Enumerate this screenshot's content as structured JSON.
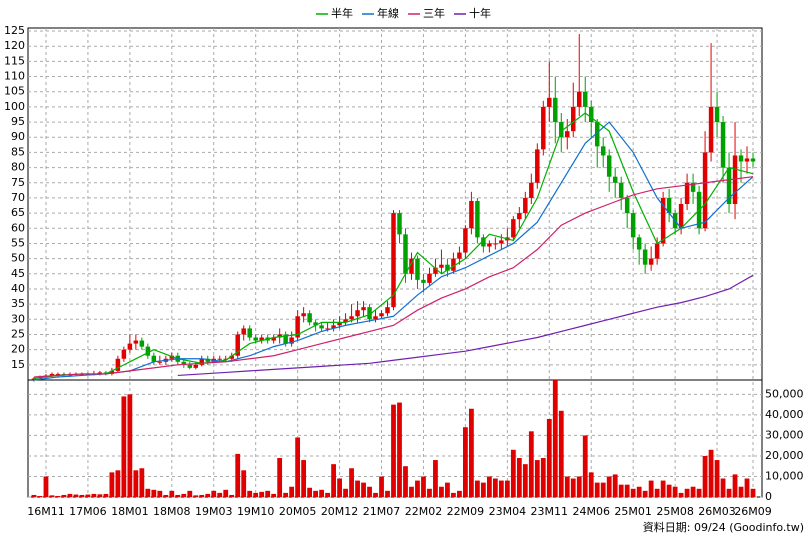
{
  "chart_data": {
    "type": "candlestick",
    "legend": "top",
    "grid": true,
    "up_color": "#e00000",
    "down_color": "#00a000",
    "volume_color": "#e00000",
    "footer": "資料日期: 09/24 (Goodinfo.tw)",
    "xlim": [
      -1,
      121.5
    ],
    "xticks": [
      {
        "value": 2,
        "label": "16M11"
      },
      {
        "value": 9,
        "label": "17M06"
      },
      {
        "value": 16,
        "label": "18M01"
      },
      {
        "value": 23,
        "label": "18M08"
      },
      {
        "value": 30,
        "label": "19M03"
      },
      {
        "value": 37,
        "label": "19M10"
      },
      {
        "value": 44,
        "label": "20M05"
      },
      {
        "value": 51,
        "label": "20M12"
      },
      {
        "value": 58,
        "label": "21M07"
      },
      {
        "value": 65,
        "label": "22M02"
      },
      {
        "value": 72,
        "label": "22M09"
      },
      {
        "value": 79,
        "label": "23M04"
      },
      {
        "value": 86,
        "label": "23M11"
      },
      {
        "value": 93,
        "label": "24M06"
      },
      {
        "value": 100,
        "label": "25M01"
      },
      {
        "value": 107,
        "label": "25M08"
      },
      {
        "value": 114,
        "label": "26M03"
      },
      {
        "value": 120,
        "label": "26M09"
      }
    ],
    "ylim": [
      10,
      126
    ],
    "yticks": [
      15,
      20,
      25,
      30,
      35,
      40,
      45,
      50,
      55,
      60,
      65,
      70,
      75,
      80,
      85,
      90,
      95,
      100,
      105,
      110,
      115,
      120,
      125
    ],
    "y2lim": [
      0,
      57000
    ],
    "y2ticks": [
      {
        "value": 0,
        "label": "0"
      },
      {
        "value": 10000,
        "label": "10,000"
      },
      {
        "value": 20000,
        "label": "20,000"
      },
      {
        "value": 30000,
        "label": "30,000"
      },
      {
        "value": 40000,
        "label": "40,000"
      },
      {
        "value": 50000,
        "label": "50,000"
      }
    ],
    "candles": [
      [
        10,
        11,
        9.5,
        10.5
      ],
      [
        10.5,
        11.5,
        10,
        11
      ],
      [
        11,
        12,
        10.5,
        11.5
      ],
      [
        11.5,
        12.5,
        11,
        12
      ],
      [
        12,
        12.5,
        11,
        12
      ],
      [
        12,
        12.5,
        11,
        11.5
      ],
      [
        11.5,
        12.5,
        11,
        12
      ],
      [
        12,
        12.5,
        11.5,
        12
      ],
      [
        12,
        12.5,
        11.5,
        12
      ],
      [
        12,
        12.5,
        11.5,
        12
      ],
      [
        12,
        13,
        11.5,
        12
      ],
      [
        12,
        13,
        11.5,
        12.5
      ],
      [
        12.5,
        13,
        11.5,
        12
      ],
      [
        12,
        14,
        11.5,
        13
      ],
      [
        13,
        18,
        12.5,
        17
      ],
      [
        17,
        21,
        16,
        20
      ],
      [
        20,
        25,
        19,
        22
      ],
      [
        22,
        25,
        20,
        23
      ],
      [
        23,
        24,
        20,
        21
      ],
      [
        21,
        22,
        17,
        18
      ],
      [
        18,
        19,
        15,
        16
      ],
      [
        16,
        18,
        15,
        16
      ],
      [
        16,
        18,
        15,
        17
      ],
      [
        17,
        19,
        16,
        18
      ],
      [
        18,
        19,
        15,
        16
      ],
      [
        16,
        17,
        14,
        15
      ],
      [
        15,
        16,
        13.5,
        14
      ],
      [
        14,
        16,
        13.5,
        15
      ],
      [
        15,
        18,
        14.5,
        17
      ],
      [
        17,
        18,
        15,
        16
      ],
      [
        16,
        18,
        15.5,
        17
      ],
      [
        17,
        18,
        16,
        17
      ],
      [
        17,
        18,
        16,
        17
      ],
      [
        17,
        19,
        16,
        18
      ],
      [
        18,
        26,
        17,
        25
      ],
      [
        25,
        28,
        23,
        27
      ],
      [
        27,
        28,
        23,
        24
      ],
      [
        24,
        25,
        22,
        23
      ],
      [
        23,
        25,
        22,
        24
      ],
      [
        24,
        25,
        22,
        23
      ],
      [
        23,
        25,
        22,
        24
      ],
      [
        24,
        27,
        22,
        25
      ],
      [
        25,
        26,
        21,
        22
      ],
      [
        22,
        26,
        21,
        24
      ],
      [
        24,
        33,
        23,
        31
      ],
      [
        31,
        34,
        29,
        32
      ],
      [
        32,
        33,
        28,
        29
      ],
      [
        29,
        30,
        26,
        28
      ],
      [
        28,
        29,
        26,
        27
      ],
      [
        27,
        29,
        26,
        27
      ],
      [
        27,
        30,
        26,
        28
      ],
      [
        28,
        31,
        27,
        29
      ],
      [
        29,
        32,
        28,
        30
      ],
      [
        30,
        35,
        29,
        31
      ],
      [
        31,
        36,
        29,
        33
      ],
      [
        33,
        36,
        31,
        34
      ],
      [
        34,
        35,
        29,
        30
      ],
      [
        30,
        33,
        29,
        31
      ],
      [
        31,
        33,
        30,
        32
      ],
      [
        32,
        36,
        31,
        34
      ],
      [
        34,
        66,
        33,
        65
      ],
      [
        65,
        66,
        55,
        58
      ],
      [
        58,
        60,
        42,
        45
      ],
      [
        45,
        52,
        43,
        50
      ],
      [
        50,
        51,
        40,
        43
      ],
      [
        43,
        45,
        39,
        42
      ],
      [
        42,
        47,
        41,
        45
      ],
      [
        45,
        50,
        44,
        47
      ],
      [
        47,
        53,
        45,
        48
      ],
      [
        48,
        50,
        44,
        46
      ],
      [
        46,
        52,
        45,
        50
      ],
      [
        50,
        54,
        48,
        52
      ],
      [
        52,
        61,
        50,
        60
      ],
      [
        60,
        72,
        58,
        69
      ],
      [
        69,
        70,
        55,
        57
      ],
      [
        57,
        58,
        52,
        54
      ],
      [
        54,
        56,
        52,
        55
      ],
      [
        55,
        57,
        53,
        55
      ],
      [
        55,
        58,
        53,
        56
      ],
      [
        56,
        60,
        54,
        57
      ],
      [
        57,
        64,
        56,
        63
      ],
      [
        63,
        67,
        60,
        65
      ],
      [
        65,
        72,
        63,
        70
      ],
      [
        70,
        78,
        68,
        75
      ],
      [
        75,
        88,
        73,
        86
      ],
      [
        86,
        102,
        84,
        100
      ],
      [
        100,
        115,
        95,
        103
      ],
      [
        103,
        110,
        88,
        95
      ],
      [
        95,
        98,
        85,
        90
      ],
      [
        90,
        96,
        86,
        92
      ],
      [
        92,
        108,
        90,
        100
      ],
      [
        100,
        124,
        97,
        105
      ],
      [
        105,
        110,
        95,
        100
      ],
      [
        100,
        102,
        90,
        95
      ],
      [
        95,
        96,
        80,
        87
      ],
      [
        87,
        90,
        80,
        84
      ],
      [
        84,
        86,
        72,
        77
      ],
      [
        77,
        80,
        70,
        75
      ],
      [
        75,
        77,
        66,
        70
      ],
      [
        70,
        71,
        60,
        65
      ],
      [
        65,
        66,
        53,
        57
      ],
      [
        57,
        58,
        48,
        53
      ],
      [
        53,
        55,
        45,
        48
      ],
      [
        48,
        54,
        46,
        50
      ],
      [
        50,
        57,
        48,
        55
      ],
      [
        55,
        72,
        54,
        70
      ],
      [
        70,
        73,
        62,
        65
      ],
      [
        65,
        66,
        58,
        60
      ],
      [
        60,
        70,
        58,
        68
      ],
      [
        68,
        78,
        66,
        75
      ],
      [
        75,
        78,
        68,
        72
      ],
      [
        72,
        74,
        58,
        60
      ],
      [
        60,
        92,
        59,
        85
      ],
      [
        85,
        121,
        82,
        100
      ],
      [
        100,
        105,
        90,
        95
      ],
      [
        95,
        97,
        75,
        80
      ],
      [
        80,
        85,
        65,
        68
      ],
      [
        68,
        95,
        63,
        84
      ],
      [
        84,
        86,
        75,
        82
      ],
      [
        82,
        87,
        78,
        83
      ],
      [
        83,
        85,
        80,
        82
      ]
    ],
    "volume": [
      1000,
      500,
      10000,
      800,
      500,
      1000,
      1500,
      1200,
      1000,
      1200,
      1500,
      1300,
      1500,
      12000,
      13000,
      49000,
      50000,
      13000,
      14000,
      4000,
      3500,
      3000,
      1000,
      3000,
      1000,
      1500,
      3000,
      800,
      1000,
      1500,
      3000,
      2000,
      3500,
      1000,
      21000,
      13000,
      3000,
      2000,
      2500,
      3000,
      1500,
      19000,
      2000,
      5000,
      29000,
      18000,
      4500,
      3000,
      3500,
      2000,
      16000,
      9000,
      4000,
      14000,
      8000,
      7000,
      5000,
      2000,
      10000,
      3000,
      45000,
      46000,
      15000,
      5000,
      8000,
      10000,
      4000,
      18000,
      5000,
      7000,
      2000,
      3000,
      34000,
      43000,
      8000,
      7000,
      10000,
      9000,
      8000,
      8000,
      23000,
      19000,
      16000,
      32000,
      18000,
      19000,
      38000,
      57000,
      42000,
      10000,
      9000,
      10000,
      30000,
      12000,
      7000,
      7000,
      10000,
      11000,
      6000,
      6000,
      4000,
      5000,
      3000,
      8000,
      4000,
      8000,
      6000,
      5000,
      2000,
      4000,
      5000,
      4000,
      20000,
      23000,
      18000,
      9000,
      4000,
      11000,
      5000,
      9000,
      4000
    ],
    "series": [
      {
        "name": "半年",
        "color": "#00b000",
        "x": [
          0,
          4,
          8,
          12,
          16,
          20,
          24,
          28,
          32,
          36,
          40,
          44,
          48,
          52,
          56,
          60,
          64,
          68,
          72,
          76,
          80,
          84,
          88,
          92,
          96,
          100,
          104,
          108,
          112,
          116,
          120
        ],
        "values": [
          10.5,
          11.5,
          12,
          12,
          16,
          20,
          17,
          15.5,
          16.5,
          22,
          24,
          25,
          29,
          29,
          31.5,
          38,
          52,
          45,
          50,
          58,
          56,
          70,
          92,
          98,
          92,
          72,
          55,
          60,
          68,
          80,
          78
        ]
      },
      {
        "name": "年線",
        "color": "#1070d0",
        "x": [
          0,
          4,
          8,
          12,
          16,
          20,
          24,
          28,
          32,
          36,
          40,
          44,
          48,
          52,
          56,
          60,
          64,
          68,
          72,
          76,
          80,
          84,
          88,
          92,
          96,
          100,
          104,
          108,
          112,
          116,
          120
        ],
        "values": [
          10,
          11,
          11.5,
          12,
          13,
          16,
          17,
          17,
          16,
          18,
          21,
          23,
          26,
          28,
          29.5,
          31,
          38,
          44,
          47,
          51,
          55,
          62,
          75,
          88,
          95,
          85,
          70,
          60,
          62,
          70,
          77
        ]
      },
      {
        "name": "三年",
        "color": "#d0206a",
        "x": [
          0,
          4,
          8,
          12,
          16,
          20,
          24,
          28,
          32,
          36,
          40,
          44,
          48,
          52,
          56,
          60,
          64,
          68,
          72,
          76,
          80,
          84,
          88,
          92,
          96,
          100,
          104,
          108,
          112,
          116,
          120
        ],
        "values": [
          11,
          11.5,
          12,
          12,
          13,
          14,
          15,
          15.5,
          16,
          17,
          18,
          20,
          22,
          24,
          26,
          28,
          33,
          37,
          40,
          44,
          47,
          53,
          61,
          65,
          68,
          71,
          73,
          74,
          75,
          76,
          77
        ]
      },
      {
        "name": "十年",
        "color": "#7020b0",
        "x": [
          24,
          28,
          32,
          36,
          40,
          44,
          48,
          52,
          56,
          60,
          64,
          68,
          72,
          76,
          80,
          84,
          88,
          92,
          96,
          100,
          104,
          108,
          112,
          116,
          120
        ],
        "values": [
          11.5,
          12,
          12.5,
          13,
          13.5,
          14,
          14.5,
          15,
          15.5,
          16.5,
          17.5,
          18.5,
          19.5,
          21,
          22.5,
          24,
          26,
          28,
          30,
          32,
          34,
          35.5,
          37.5,
          40,
          44.5
        ]
      }
    ]
  }
}
